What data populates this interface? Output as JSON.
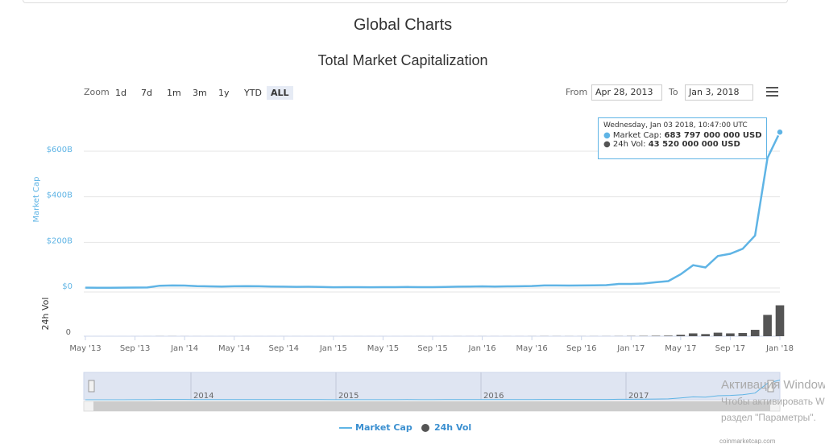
{
  "page_title": "Global Charts",
  "ui": {
    "zoom_label": "Zoom",
    "zoom_buttons": [
      "1d",
      "7d",
      "1m",
      "3m",
      "1y",
      "YTD",
      "ALL"
    ],
    "zoom_selected": "ALL",
    "from_label": "From",
    "from_value": "Apr 28, 2013",
    "to_label": "To",
    "to_value": "Jan 3, 2018"
  },
  "tooltip": {
    "date": "Wednesday, Jan 03 2018, 10:47:00 UTC",
    "items": [
      {
        "label": "Market Cap:",
        "value_label": "683 797 000 000 USD"
      },
      {
        "label": "24h Vol:",
        "value_label": "43 520 000 000 USD"
      }
    ]
  },
  "watermark": [
    "Активация Windows",
    "Чтобы активировать Windows, перейдите в",
    "раздел \"Параметры\"."
  ],
  "credit": "coinmarketcap.com",
  "chart_data": {
    "type": "line",
    "title": "Total Market Capitalization",
    "y_label": "Market Cap",
    "y2_label": "24h Vol",
    "categories": [
      "May '13",
      null,
      null,
      null,
      "Sep '13",
      null,
      null,
      null,
      "Jan '14",
      null,
      null,
      null,
      "May '14",
      null,
      null,
      null,
      "Sep '14",
      null,
      null,
      null,
      "Jan '15",
      null,
      null,
      null,
      "May '15",
      null,
      null,
      null,
      "Sep '15",
      null,
      null,
      null,
      "Jan '16",
      null,
      null,
      null,
      "May '16",
      null,
      null,
      null,
      "Sep '16",
      null,
      null,
      null,
      "Jan '17",
      null,
      null,
      null,
      "May '17",
      null,
      null,
      null,
      "Sep '17",
      null,
      null,
      null,
      "Jan '18"
    ],
    "series": [
      {
        "name": "Market Cap",
        "color": "#5fb4e5",
        "values": [
          1300000000,
          1200000000,
          1000000000,
          1300000000,
          1600000000,
          2000000000,
          10000000000,
          11000000000,
          10500000000,
          8000000000,
          7000000000,
          6000000000,
          7500000000,
          8000000000,
          7500000000,
          6500000000,
          5500000000,
          5000000000,
          5300000000,
          4500000000,
          3300000000,
          3600000000,
          3500000000,
          3300000000,
          3400000000,
          3500000000,
          4300000000,
          3400000000,
          3400000000,
          4300000000,
          5500000000,
          6300000000,
          6900000000,
          6500000000,
          7200000000,
          7500000000,
          8500000000,
          11000000000,
          11000000000,
          10500000000,
          10800000000,
          11500000000,
          12500000000,
          17500000000,
          17700000000,
          19500000000,
          25000000000,
          30000000000,
          60000000000,
          100000000000,
          90000000000,
          140000000000,
          150000000000,
          172000000000,
          230000000000,
          570000000000,
          683797000000
        ]
      },
      {
        "name": "24h Vol",
        "color": "#555555",
        "axis": "y2",
        "values": [
          10000000,
          10000000,
          10000000,
          10000000,
          20000000,
          30000000,
          100000000,
          100000000,
          50000000,
          40000000,
          30000000,
          30000000,
          30000000,
          30000000,
          20000000,
          20000000,
          30000000,
          30000000,
          20000000,
          20000000,
          30000000,
          30000000,
          30000000,
          20000000,
          20000000,
          20000000,
          30000000,
          30000000,
          20000000,
          40000000,
          60000000,
          50000000,
          60000000,
          50000000,
          60000000,
          50000000,
          80000000,
          150000000,
          120000000,
          100000000,
          80000000,
          100000000,
          120000000,
          200000000,
          300000000,
          400000000,
          600000000,
          800000000,
          2000000000,
          4000000000,
          3000000000,
          5000000000,
          4000000000,
          4500000000,
          9000000000,
          30000000000,
          43520000000
        ]
      }
    ],
    "ylim": [
      0,
      780000000000
    ],
    "yticks": [
      {
        "value": 0,
        "label": "$0"
      },
      {
        "value": 200000000000,
        "label": "$200B"
      },
      {
        "value": 400000000000,
        "label": "$400B"
      },
      {
        "value": 600000000000,
        "label": "$600B"
      }
    ],
    "y2lim": [
      0,
      60000000000
    ],
    "y2ticks": [
      0
    ],
    "grid": true,
    "navigator_labels": [
      "2014",
      "2015",
      "2016",
      "2017"
    ],
    "legend": "bottom"
  }
}
